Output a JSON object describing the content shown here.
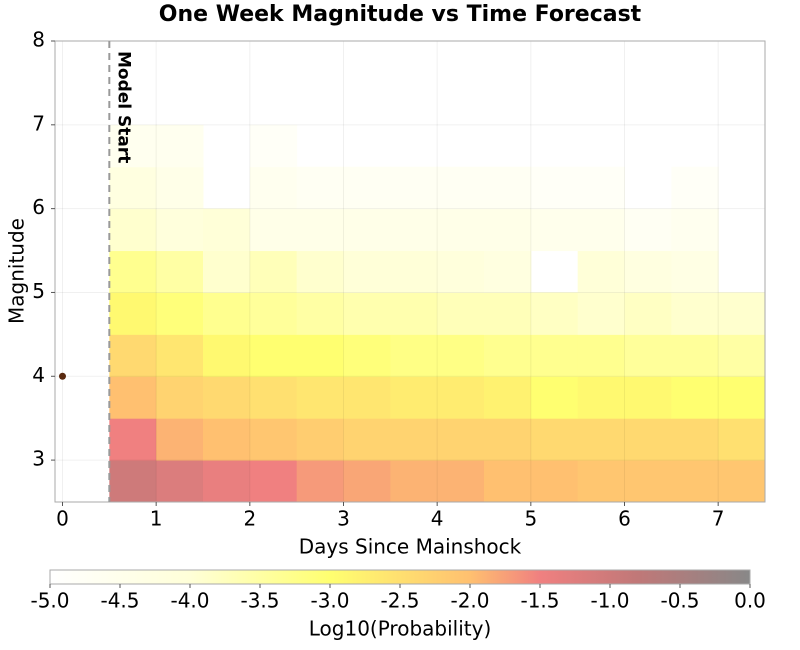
{
  "chart_data": {
    "type": "heatmap",
    "title": "One Week Magnitude vs Time Forecast",
    "x_label": "Days Since Mainshock",
    "y_label": "Magnitude",
    "colorbar_label": "Log10(Probability)",
    "annotation": "Model Start",
    "model_start": {
      "x": 0.5
    },
    "mainshock": {
      "x": 0,
      "y": 4,
      "color": "#5a2a10"
    },
    "x_bins": [
      0.5,
      1,
      1.5,
      2,
      2.5,
      3,
      3.5,
      4,
      4.5,
      5,
      5.5,
      6,
      6.5,
      7,
      7.5
    ],
    "y_bins": [
      2.5,
      3,
      3.5,
      4,
      4.5,
      5,
      5.5,
      6,
      6.5,
      7,
      7.5,
      8
    ],
    "z": [
      [
        -1.0,
        -1.2,
        -1.4,
        -1.5,
        -1.7,
        -1.8,
        -1.9,
        -1.9,
        -2.0,
        -2.0,
        -2.1,
        -2.1,
        -2.1,
        -2.1
      ],
      [
        -1.5,
        -1.9,
        -2.0,
        -2.1,
        -2.2,
        -2.3,
        -2.3,
        -2.3,
        -2.3,
        -2.4,
        -2.4,
        -2.4,
        -2.4,
        -2.5
      ],
      [
        -2.0,
        -2.3,
        -2.4,
        -2.5,
        -2.6,
        -2.6,
        -2.7,
        -2.7,
        -2.8,
        -3.0,
        -2.9,
        -2.9,
        -3.0,
        -3.0
      ],
      [
        -2.4,
        -2.6,
        -2.9,
        -3.0,
        -3.0,
        -3.1,
        -3.2,
        -3.2,
        -3.3,
        -3.3,
        -3.3,
        -3.4,
        -3.4,
        -3.5
      ],
      [
        -2.9,
        -3.1,
        -3.3,
        -3.4,
        -3.5,
        -3.6,
        -3.6,
        -3.7,
        -3.7,
        -3.8,
        -3.9,
        -3.8,
        -3.9,
        -3.9
      ],
      [
        -3.3,
        -3.5,
        -3.9,
        -3.7,
        -3.9,
        -4.0,
        -4.0,
        -4.1,
        -4.2,
        null,
        -4.0,
        -4.2,
        -4.3,
        null
      ],
      [
        -3.9,
        -4.1,
        -4.0,
        -4.4,
        -4.4,
        -4.4,
        -4.4,
        -4.4,
        -4.4,
        -4.5,
        -4.5,
        -4.7,
        -4.6,
        null
      ],
      [
        -4.2,
        -4.4,
        null,
        -4.6,
        -4.7,
        -4.7,
        -4.7,
        -4.7,
        -4.7,
        -4.8,
        -4.8,
        null,
        -4.8,
        null
      ],
      [
        -4.6,
        -4.6,
        null,
        -4.8,
        null,
        null,
        null,
        null,
        null,
        null,
        null,
        null,
        null,
        null
      ],
      [
        null,
        null,
        null,
        null,
        null,
        null,
        null,
        null,
        null,
        null,
        null,
        null,
        null,
        null
      ],
      [
        null,
        null,
        null,
        null,
        null,
        null,
        null,
        null,
        null,
        null,
        null,
        null,
        null,
        null
      ]
    ],
    "xlim": [
      -0.08,
      7.5
    ],
    "xticks": [
      0,
      1,
      2,
      3,
      4,
      5,
      6,
      7
    ],
    "ylim": [
      2.5,
      8
    ],
    "yticks": [
      3,
      4,
      5,
      6,
      7,
      8
    ],
    "zlim": [
      -5,
      0
    ],
    "zticks": [
      {
        "value": -5,
        "label": "-5.0"
      },
      {
        "value": -4.5,
        "label": "-4.5"
      },
      {
        "value": -4,
        "label": "-4.0"
      },
      {
        "value": -3.5,
        "label": "-3.5"
      },
      {
        "value": -3,
        "label": "-3.0"
      },
      {
        "value": -2.5,
        "label": "-2.5"
      },
      {
        "value": -2,
        "label": "-2.0"
      },
      {
        "value": -1.5,
        "label": "-1.5"
      },
      {
        "value": -1,
        "label": "-1.0"
      },
      {
        "value": -0.5,
        "label": "-0.5"
      },
      {
        "value": 0,
        "label": "0.0"
      }
    ],
    "colormap": [
      {
        "value": -5,
        "color": "#ffffff"
      },
      {
        "value": -4,
        "color": "#ffffd8"
      },
      {
        "value": -3,
        "color": "#ffff70"
      },
      {
        "value": -2,
        "color": "#ffc070"
      },
      {
        "value": -1.5,
        "color": "#f08080"
      },
      {
        "value": -0.8,
        "color": "#c07878"
      },
      {
        "value": 0,
        "color": "#888888"
      }
    ],
    "grid": true
  }
}
